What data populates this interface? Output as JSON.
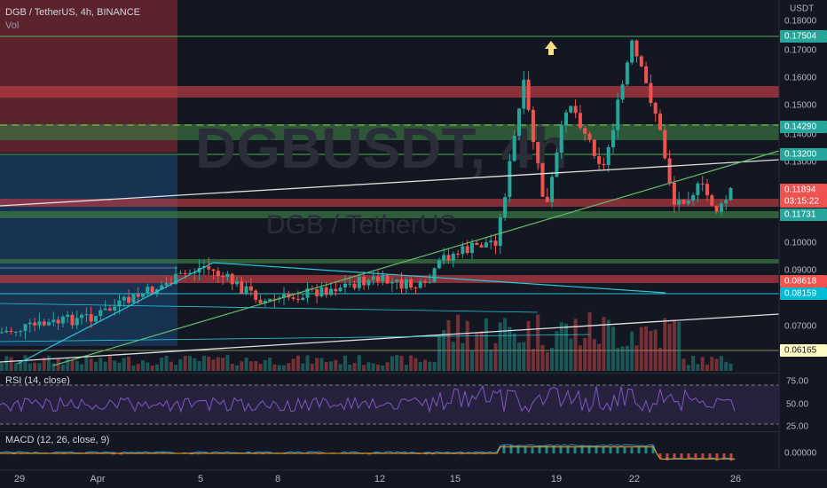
{
  "header": {
    "symbol": "DGB / TetherUS, 4h, BINANCE",
    "volume": "Vol",
    "currency": "USDT"
  },
  "watermark": {
    "ticker": "DGBUSDT, 4h",
    "pair": "DGB / TetherUS"
  },
  "price_axis": {
    "ticks": [
      "0.18000",
      "0.17000",
      "0.16000",
      "0.15000",
      "0.14000",
      "0.13000",
      "0.10000",
      "0.09000",
      "0.07000"
    ]
  },
  "price_labels": [
    {
      "text": "0.17504",
      "color": "#26a69a"
    },
    {
      "text": "0.14290",
      "color": "#26a69a"
    },
    {
      "text": "0.13200",
      "color": "#26a69a"
    },
    {
      "text": "0.11894",
      "color": "#ef5350"
    },
    {
      "text": "03:15:22",
      "color": "#ef5350"
    },
    {
      "text": "0.11731",
      "color": "#26a69a"
    },
    {
      "text": "0.08618",
      "color": "#ef5350"
    },
    {
      "text": "0.08159",
      "color": "#00bcd4"
    },
    {
      "text": "0.06165",
      "color": "#fff9c4"
    }
  ],
  "rsi": {
    "title": "RSI (14, close)",
    "ticks": [
      "75.00",
      "50.00",
      "25.00"
    ]
  },
  "macd": {
    "title": "MACD (12, 26, close, 9)",
    "ticks": [
      "0.00000"
    ]
  },
  "time_axis": [
    "29",
    "Apr",
    "5",
    "8",
    "12",
    "15",
    "19",
    "22",
    "26"
  ]
}
